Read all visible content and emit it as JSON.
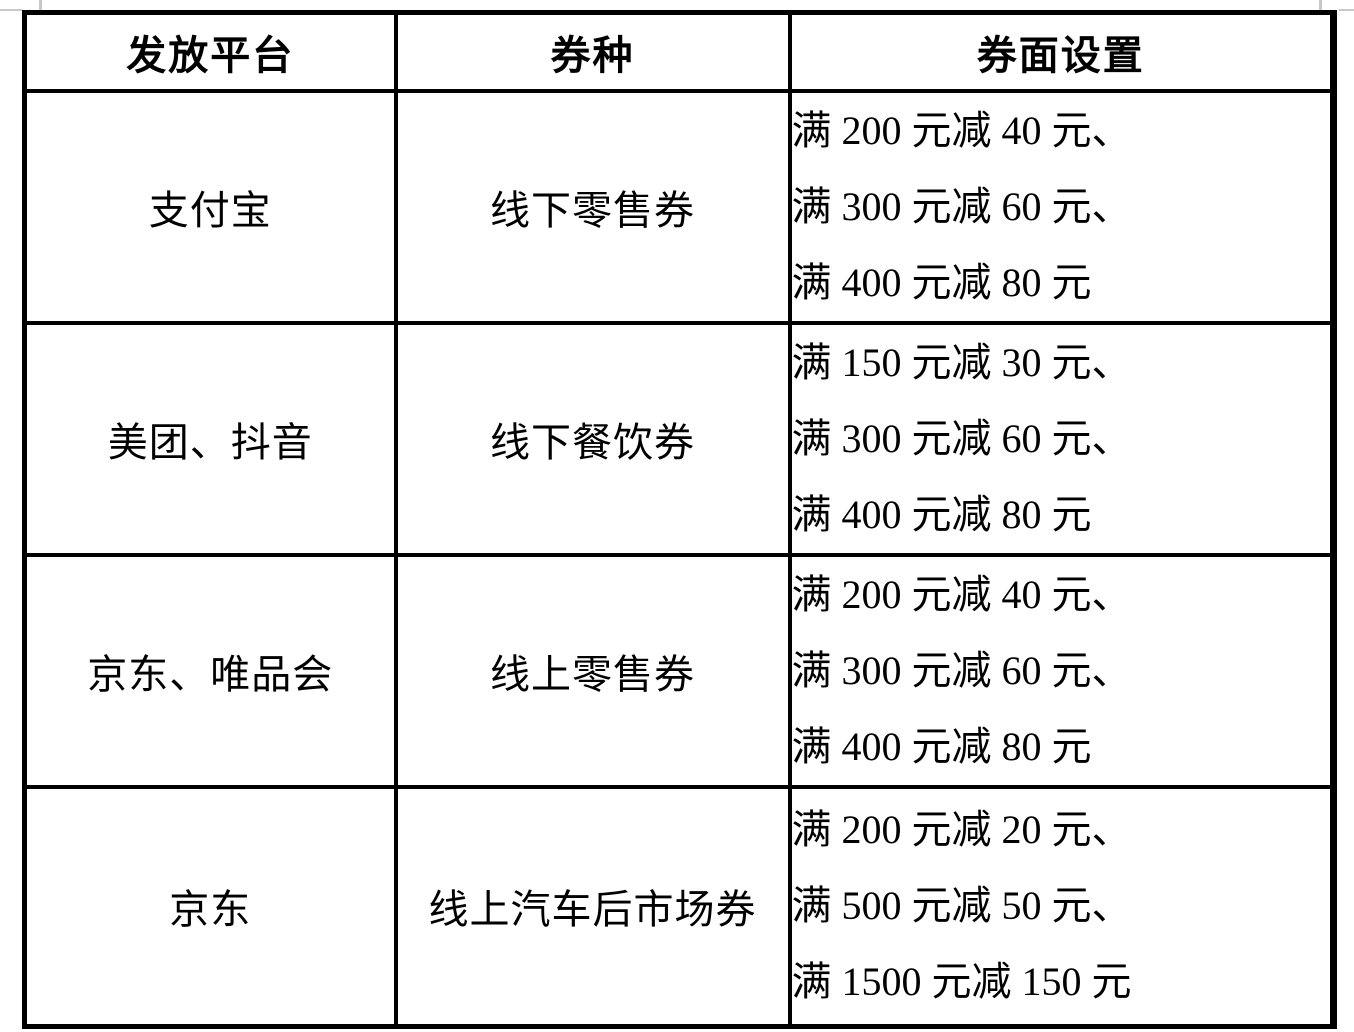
{
  "colors": {
    "table_border": "#000000",
    "text": "#000000",
    "background": "#ffffff",
    "crop_artifact_gray": "#c8c8c8"
  },
  "table": {
    "headers": {
      "platform": "发放平台",
      "coupon_type": "券种",
      "face_value_setting": "券面设置"
    },
    "rows": [
      {
        "platform": "支付宝",
        "coupon_type": "线下零售券",
        "settings": [
          "满 200 元减 40 元、",
          "满 300 元减 60 元、",
          "满 400 元减 80 元"
        ]
      },
      {
        "platform": "美团、抖音",
        "coupon_type": "线下餐饮券",
        "settings": [
          "满 150 元减 30 元、",
          "满 300 元减 60 元、",
          "满 400 元减 80 元"
        ]
      },
      {
        "platform": "京东、唯品会",
        "coupon_type": "线上零售券",
        "settings": [
          "满 200 元减 40 元、",
          "满 300 元减 60 元、",
          "满 400 元减 80 元"
        ]
      },
      {
        "platform": "京东",
        "coupon_type": "线上汽车后市场券",
        "settings": [
          "满 200 元减 20 元、",
          "满 500 元减 50 元、",
          "满 1500 元减 150 元"
        ]
      }
    ]
  }
}
